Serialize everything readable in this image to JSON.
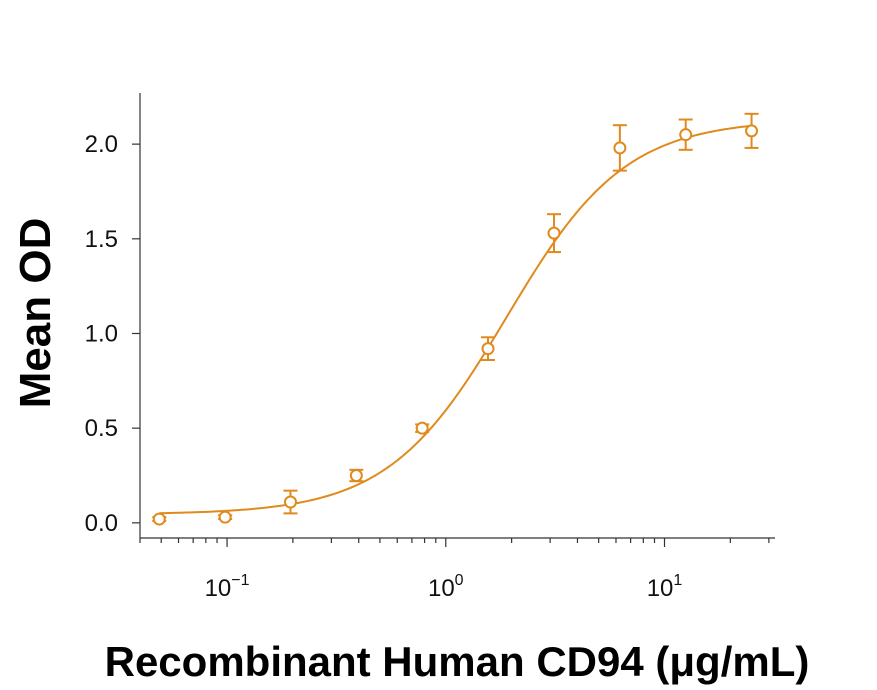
{
  "chart_data": {
    "type": "scatter",
    "title": "",
    "xlabel": "Recombinant Human CD94 (μg/mL)",
    "ylabel": "Mean OD",
    "x_scale": "log",
    "xlim": [
      0.04,
      32
    ],
    "ylim": [
      -0.08,
      2.27
    ],
    "x_ticks": [
      {
        "value": 0.1,
        "base": "10",
        "exp": "−1"
      },
      {
        "value": 1,
        "base": "10",
        "exp": "0"
      },
      {
        "value": 10,
        "base": "10",
        "exp": "1"
      }
    ],
    "y_ticks": [
      {
        "value": 0.0,
        "label": "0.0"
      },
      {
        "value": 0.5,
        "label": "0.5"
      },
      {
        "value": 1.0,
        "label": "1.0"
      },
      {
        "value": 1.5,
        "label": "1.5"
      },
      {
        "value": 2.0,
        "label": "2.0"
      }
    ],
    "grid": false,
    "legend": "none",
    "color": "#E08A1E",
    "series": [
      {
        "points": [
          {
            "x": 0.049,
            "y": 0.02,
            "err": 0.01
          },
          {
            "x": 0.098,
            "y": 0.03,
            "err": 0.01
          },
          {
            "x": 0.195,
            "y": 0.11,
            "err": 0.06
          },
          {
            "x": 0.39,
            "y": 0.25,
            "err": 0.03
          },
          {
            "x": 0.78,
            "y": 0.5,
            "err": 0.02
          },
          {
            "x": 1.56,
            "y": 0.92,
            "err": 0.06
          },
          {
            "x": 3.125,
            "y": 1.53,
            "err": 0.1
          },
          {
            "x": 6.25,
            "y": 1.98,
            "err": 0.12
          },
          {
            "x": 12.5,
            "y": 2.05,
            "err": 0.08
          },
          {
            "x": 25,
            "y": 2.07,
            "err": 0.09
          }
        ],
        "fit": {
          "type": "4PL",
          "bottom": 0.045,
          "top": 2.13,
          "ec50": 1.9,
          "hill": 1.6
        }
      }
    ]
  }
}
